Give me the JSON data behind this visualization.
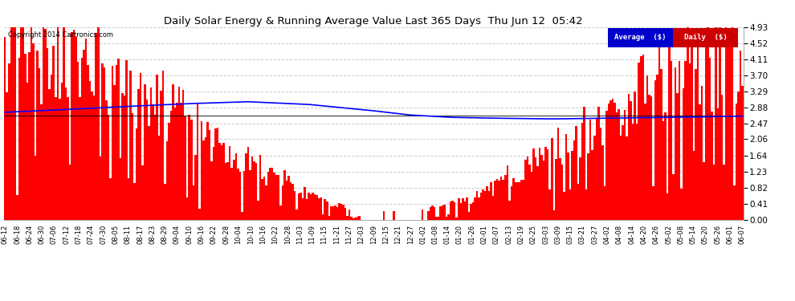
{
  "title": "Daily Solar Energy & Running Average Value Last 365 Days  Thu Jun 12  05:42",
  "copyright": "Copyright 2014 Cartronics.com",
  "bar_color": "#ff0000",
  "avg_color": "#0000ff",
  "bg_color": "#ffffff",
  "grid_color": "#cccccc",
  "yticks": [
    0.0,
    0.41,
    0.82,
    1.23,
    1.64,
    2.06,
    2.47,
    2.88,
    3.29,
    3.7,
    4.11,
    4.52,
    4.93
  ],
  "ymax": 4.93,
  "ymin": 0.0,
  "legend_avg_label": "Average  ($)",
  "legend_daily_label": "Daily  ($)",
  "n_days": 365,
  "avg_line_points": [
    [
      0,
      2.75
    ],
    [
      30,
      2.82
    ],
    [
      60,
      2.9
    ],
    [
      90,
      2.97
    ],
    [
      120,
      3.02
    ],
    [
      150,
      2.95
    ],
    [
      180,
      2.8
    ],
    [
      200,
      2.68
    ],
    [
      220,
      2.62
    ],
    [
      240,
      2.6
    ],
    [
      270,
      2.58
    ],
    [
      300,
      2.6
    ],
    [
      330,
      2.62
    ],
    [
      364,
      2.65
    ]
  ],
  "xtick_labels": [
    "06-12",
    "06-18",
    "06-24",
    "06-30",
    "07-06",
    "07-12",
    "07-18",
    "07-24",
    "07-30",
    "08-05",
    "08-11",
    "08-17",
    "08-23",
    "08-29",
    "09-04",
    "09-10",
    "09-16",
    "09-22",
    "09-28",
    "10-04",
    "10-10",
    "10-16",
    "10-22",
    "10-28",
    "11-03",
    "11-09",
    "11-15",
    "11-21",
    "11-27",
    "12-03",
    "12-09",
    "12-15",
    "12-21",
    "12-27",
    "01-02",
    "01-08",
    "01-14",
    "01-20",
    "01-26",
    "02-01",
    "02-07",
    "02-13",
    "02-19",
    "02-25",
    "03-03",
    "03-09",
    "03-15",
    "03-21",
    "03-27",
    "04-02",
    "04-08",
    "04-14",
    "04-20",
    "04-26",
    "05-02",
    "05-08",
    "05-14",
    "05-20",
    "05-26",
    "06-01",
    "06-07"
  ]
}
